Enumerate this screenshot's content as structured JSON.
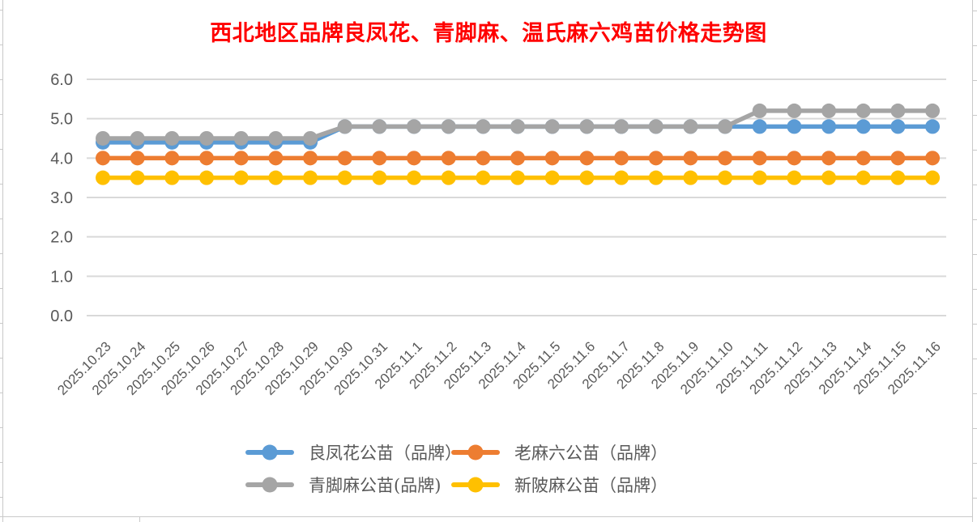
{
  "title": {
    "text": "西北地区品牌良凤花、青脚麻、温氏麻六鸡苗价格走势图",
    "color": "#FF0000"
  },
  "chart_data": {
    "type": "line",
    "title": "西北地区品牌良凤花、青脚麻、温氏麻六鸡苗价格走势图",
    "x": [
      "2025.10.23",
      "2025.10.24",
      "2025.10.25",
      "2025.10.26",
      "2025.10.27",
      "2025.10.28",
      "2025.10.29",
      "2025.10.30",
      "2025.10.31",
      "2025.11.1",
      "2025.11.2",
      "2025.11.3",
      "2025.11.4",
      "2025.11.5",
      "2025.11.6",
      "2025.11.7",
      "2025.11.8",
      "2025.11.9",
      "2025.11.10",
      "2025.11.11",
      "2025.11.12",
      "2025.11.13",
      "2025.11.14",
      "2025.11.15",
      "2025.11.16"
    ],
    "series": [
      {
        "name": "良凤花公苗（品牌）",
        "color": "#5B9BD5",
        "values": [
          4.4,
          4.4,
          4.4,
          4.4,
          4.4,
          4.4,
          4.4,
          4.8,
          4.8,
          4.8,
          4.8,
          4.8,
          4.8,
          4.8,
          4.8,
          4.8,
          4.8,
          4.8,
          4.8,
          4.8,
          4.8,
          4.8,
          4.8,
          4.8,
          4.8
        ]
      },
      {
        "name": "老麻六公苗（品牌）",
        "color": "#ED7D31",
        "values": [
          4.0,
          4.0,
          4.0,
          4.0,
          4.0,
          4.0,
          4.0,
          4.0,
          4.0,
          4.0,
          4.0,
          4.0,
          4.0,
          4.0,
          4.0,
          4.0,
          4.0,
          4.0,
          4.0,
          4.0,
          4.0,
          4.0,
          4.0,
          4.0,
          4.0
        ]
      },
      {
        "name": "青脚麻公苗(品牌)",
        "color": "#A5A5A5",
        "values": [
          4.5,
          4.5,
          4.5,
          4.5,
          4.5,
          4.5,
          4.5,
          4.8,
          4.8,
          4.8,
          4.8,
          4.8,
          4.8,
          4.8,
          4.8,
          4.8,
          4.8,
          4.8,
          4.8,
          5.2,
          5.2,
          5.2,
          5.2,
          5.2,
          5.2
        ]
      },
      {
        "name": "新陂麻公苗（品牌）",
        "color": "#FFC000",
        "values": [
          3.5,
          3.5,
          3.5,
          3.5,
          3.5,
          3.5,
          3.5,
          3.5,
          3.5,
          3.5,
          3.5,
          3.5,
          3.5,
          3.5,
          3.5,
          3.5,
          3.5,
          3.5,
          3.5,
          3.5,
          3.5,
          3.5,
          3.5,
          3.5,
          3.5
        ]
      }
    ],
    "ylim": [
      0,
      6
    ],
    "yticks": [
      0,
      1,
      2,
      3,
      4,
      5,
      6
    ],
    "ytick_labels": [
      "0.0",
      "1.0",
      "2.0",
      "3.0",
      "4.0",
      "5.0",
      "6.0"
    ],
    "grid": "horizontal",
    "grid_color": "#D9D9D9",
    "tick_label_color": "#595959",
    "x_label_rotation": -45,
    "marker": "circle",
    "legend_position": "bottom",
    "legend_columns": 2
  }
}
